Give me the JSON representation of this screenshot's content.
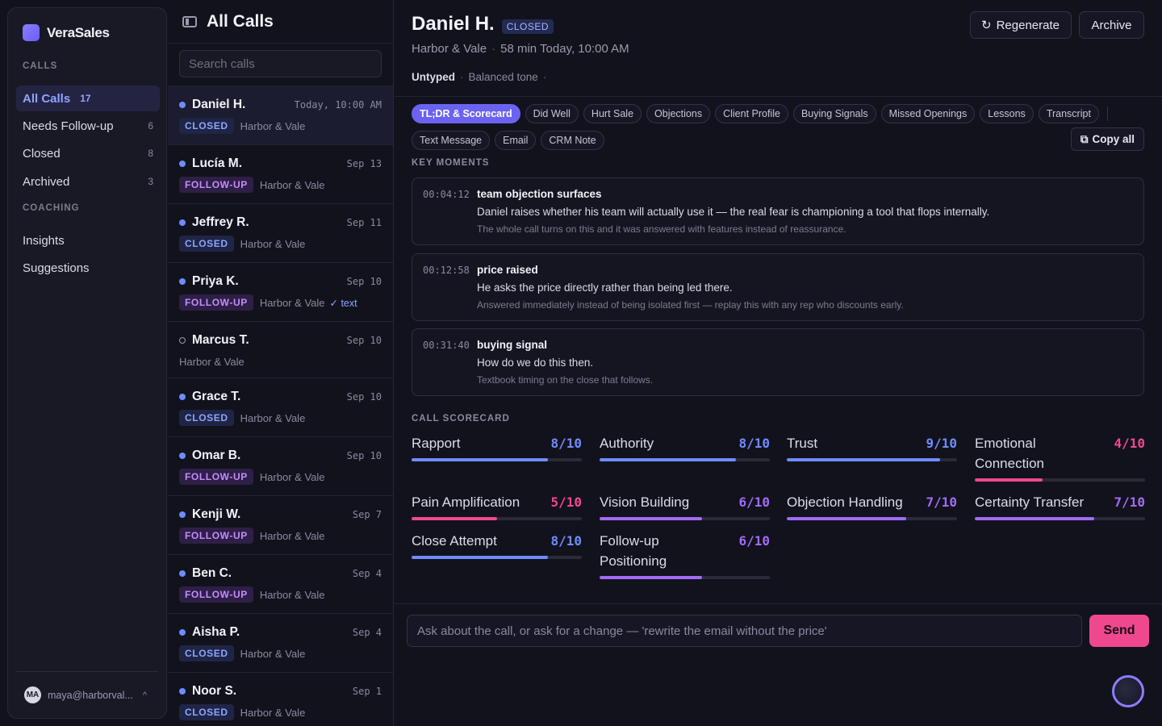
{
  "sidebar": {
    "brand": "VeraSales",
    "calls_label": "CALLS",
    "nav": [
      {
        "label": "All Calls",
        "count": "17"
      },
      {
        "label": "Needs Follow-up",
        "count": "6"
      },
      {
        "label": "Closed",
        "count": "8"
      },
      {
        "label": "Archived",
        "count": "3"
      }
    ],
    "coaching_label": "COACHING",
    "coaching": [
      {
        "label": "Insights"
      },
      {
        "label": "Suggestions"
      }
    ],
    "user": {
      "initials": "MA",
      "email": "maya@harborval...",
      "chevron": "^"
    }
  },
  "list": {
    "title": "All Calls",
    "search_placeholder": "Search calls",
    "calls": [
      {
        "name": "Daniel H.",
        "date": "Today, 10:00 AM",
        "status": "CLOSED",
        "company": "Harbor & Vale",
        "extra": ""
      },
      {
        "name": "Lucía M.",
        "date": "Sep 13",
        "status": "FOLLOW-UP",
        "company": "Harbor & Vale",
        "extra": ""
      },
      {
        "name": "Jeffrey R.",
        "date": "Sep 11",
        "status": "CLOSED",
        "company": "Harbor & Vale",
        "extra": ""
      },
      {
        "name": "Priya K.",
        "date": "Sep 10",
        "status": "FOLLOW-UP",
        "company": "Harbor & Vale",
        "extra": "✓ text"
      },
      {
        "name": "Marcus T.",
        "date": "Sep 10",
        "status": "",
        "company": "Harbor & Vale",
        "extra": ""
      },
      {
        "name": "Grace T.",
        "date": "Sep 10",
        "status": "CLOSED",
        "company": "Harbor & Vale",
        "extra": ""
      },
      {
        "name": "Omar B.",
        "date": "Sep 10",
        "status": "FOLLOW-UP",
        "company": "Harbor & Vale",
        "extra": ""
      },
      {
        "name": "Kenji W.",
        "date": "Sep 7",
        "status": "FOLLOW-UP",
        "company": "Harbor & Vale",
        "extra": ""
      },
      {
        "name": "Ben C.",
        "date": "Sep 4",
        "status": "FOLLOW-UP",
        "company": "Harbor & Vale",
        "extra": ""
      },
      {
        "name": "Aisha P.",
        "date": "Sep 4",
        "status": "CLOSED",
        "company": "Harbor & Vale",
        "extra": ""
      },
      {
        "name": "Noor S.",
        "date": "Sep 1",
        "status": "CLOSED",
        "company": "Harbor & Vale",
        "extra": ""
      }
    ]
  },
  "detail": {
    "name": "Daniel H.",
    "status": "CLOSED",
    "company": "Harbor & Vale",
    "duration": "58 min",
    "when": "Today, 10:00 AM",
    "type": "Untyped",
    "tone": "Balanced tone",
    "regenerate_label": "Regenerate",
    "archive_label": "Archive",
    "tabs": [
      "TL;DR & Scorecard",
      "Did Well",
      "Hurt Sale",
      "Objections",
      "Client Profile",
      "Buying Signals",
      "Missed Openings",
      "Lessons",
      "Transcript",
      "Text Message",
      "Email",
      "CRM Note"
    ],
    "copy_all_label": "Copy all",
    "key_moments_label": "KEY MOMENTS",
    "moments": [
      {
        "time": "00:04:12",
        "title": "team objection surfaces",
        "quote": "Daniel raises whether his team will actually use it — the real fear is championing a tool that flops internally.",
        "note": "The whole call turns on this and it was answered with features instead of reassurance."
      },
      {
        "time": "00:12:58",
        "title": "price raised",
        "quote": "He asks the price directly rather than being led there.",
        "note": "Answered immediately instead of being isolated first — replay this with any rep who discounts early."
      },
      {
        "time": "00:31:40",
        "title": "buying signal",
        "quote": "How do we do this then.",
        "note": "Textbook timing on the close that follows."
      }
    ],
    "scorecard_label": "CALL SCORECARD",
    "scores": [
      {
        "name": "Rapport",
        "score": 8,
        "max": 10,
        "display": "8/10"
      },
      {
        "name": "Authority",
        "score": 8,
        "max": 10,
        "display": "8/10"
      },
      {
        "name": "Trust",
        "score": 9,
        "max": 10,
        "display": "9/10"
      },
      {
        "name": "Emotional Connection",
        "score": 4,
        "max": 10,
        "display": "4/10"
      },
      {
        "name": "Pain Amplification",
        "score": 5,
        "max": 10,
        "display": "5/10"
      },
      {
        "name": "Vision Building",
        "score": 6,
        "max": 10,
        "display": "6/10"
      },
      {
        "name": "Objection Handling",
        "score": 7,
        "max": 10,
        "display": "7/10"
      },
      {
        "name": "Certainty Transfer",
        "score": 7,
        "max": 10,
        "display": "7/10"
      },
      {
        "name": "Close Attempt",
        "score": 8,
        "max": 10,
        "display": "8/10"
      },
      {
        "name": "Follow-up Positioning",
        "score": 6,
        "max": 10,
        "display": "6/10"
      }
    ],
    "chat_placeholder": "Ask about the call, or ask for a change — 'rewrite the email without the price'",
    "send_label": "Send"
  },
  "colors": {
    "high": "#6f8cff",
    "mid": "#a26bf5",
    "low": "#f0488e"
  }
}
